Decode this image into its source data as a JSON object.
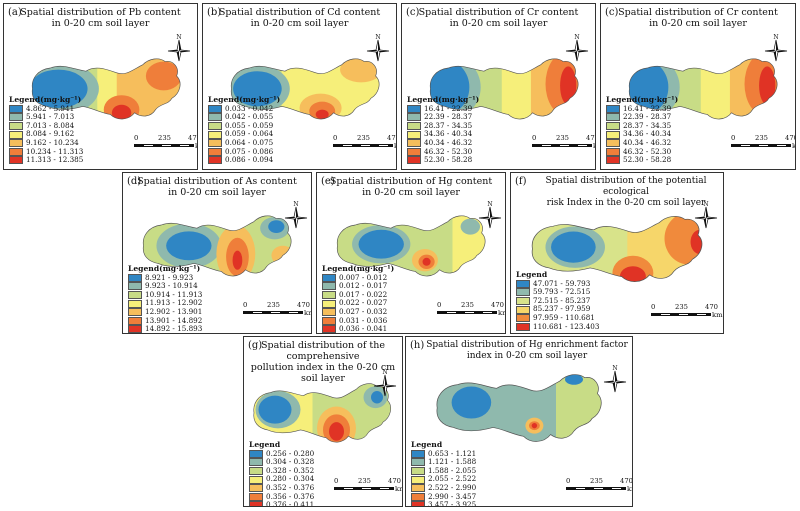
{
  "common": {
    "legend_unit_title": "Legend(mg·kg⁻¹)",
    "legend_plain_title": "Legend",
    "north_label": "N",
    "scale": [
      "0",
      "235",
      "470"
    ],
    "scale_unit": "km"
  },
  "panels": [
    {
      "label": "(a)",
      "title": [
        "Spatial distribution of Pb content",
        "in 0-20 cm soil layer"
      ],
      "legend_title_key": "unit",
      "classes": [
        "4.862 - 5.941",
        "5.941 - 7.013",
        "7.013 - 8.084",
        "8.084 - 9.162",
        "9.162 - 10.234",
        "10.234 - 11.313",
        "11.313 - 12.385"
      ]
    },
    {
      "label": "(b)",
      "title": [
        "Spatial distribution of Cd content",
        "in 0-20 cm soil layer"
      ],
      "legend_title_key": "unit",
      "classes": [
        "0.033 - 0.042",
        "0.042 - 0.055",
        "0.055 - 0.059",
        "0.059 - 0.064",
        "0.064 - 0.075",
        "0.075 - 0.086",
        "0.086 - 0.094"
      ]
    },
    {
      "label": "(c)",
      "title": [
        "Spatial distribution of Cr content",
        "in 0-20 cm soil layer"
      ],
      "legend_title_key": "unit",
      "classes": [
        "16.41 - 22.39",
        "22.39 - 28.37",
        "28.37 - 34.35",
        "34.36 - 40.34",
        "40.34 - 46.32",
        "46.32 - 52.30",
        "52.30 - 58.28"
      ]
    },
    {
      "label": "(c)",
      "title": [
        "Spatial distribution of Cr content",
        "in 0-20 cm soil layer"
      ],
      "legend_title_key": "unit",
      "classes": [
        "16.41 - 22.39",
        "22.39 - 28.37",
        "28.37 - 34.35",
        "34.36 - 40.34",
        "40.34 - 46.32",
        "46.32 - 52.30",
        "52.30 - 58.28"
      ]
    },
    {
      "label": "(d)",
      "title": [
        "Spatial distribution of As content",
        "in 0-20 cm soil layer"
      ],
      "legend_title_key": "unit",
      "classes": [
        "8.921 - 9.923",
        "9.923 - 10.914",
        "10.914 - 11.913",
        "11.913 - 12.902",
        "12.902 - 13.901",
        "13.901 - 14.892",
        "14.892 - 15.893"
      ]
    },
    {
      "label": "(e)",
      "title": [
        "Spatial distribution of Hg content",
        "in 0-20 cm soil layer"
      ],
      "legend_title_key": "unit",
      "classes": [
        "0.007 - 0.012",
        "0.012 - 0.017",
        "0.017 - 0.022",
        "0.022 - 0.027",
        "0.027 - 0.032",
        "0.031 - 0.036",
        "0.036 - 0.041"
      ]
    },
    {
      "label": "(f)",
      "title": [
        "Spatial distribution of the potential ecological",
        "risk Index  in  the 0-20 cm soil layer"
      ],
      "legend_title_key": "plain",
      "classes": [
        "47.071 - 59.793",
        "59.793 - 72.515",
        "72.515 - 85.237",
        "85.237 - 97.959",
        "97.959 - 110.681",
        "110.681 - 123.403"
      ]
    },
    {
      "label": "(g)",
      "title": [
        "Spatial distribution of the comprehensive",
        "pollution index in the 0-20 cm soil layer"
      ],
      "legend_title_key": "plain",
      "classes": [
        "0.256 - 0.280",
        "0.304 - 0.328",
        "0.328 - 0.352",
        "0.280 - 0.304",
        "0.352 - 0.376",
        "0.356 - 0.376",
        "0.376 - 0.411"
      ]
    },
    {
      "label": "(h)",
      "title": [
        "Spatial distribution of Hg enrichment factor",
        "index in 0-20 cm soil layer"
      ],
      "legend_title_key": "plain",
      "classes": [
        "0.653 - 1.121",
        "1.121 - 1.588",
        "1.588 - 2.055",
        "2.055 - 2.522",
        "2.522 - 2.990",
        "2.990 - 3.457",
        "3.457 - 3.925"
      ]
    }
  ],
  "colors": {
    "c7": [
      "#2f86c4",
      "#8fb9ad",
      "#c8dc86",
      "#f6ef7a",
      "#f6be5c",
      "#ef7e3a",
      "#e03325"
    ],
    "c6": [
      "#2f86c4",
      "#8fb9ad",
      "#d8e38a",
      "#f6d66a",
      "#f08a3c",
      "#e03325"
    ]
  }
}
